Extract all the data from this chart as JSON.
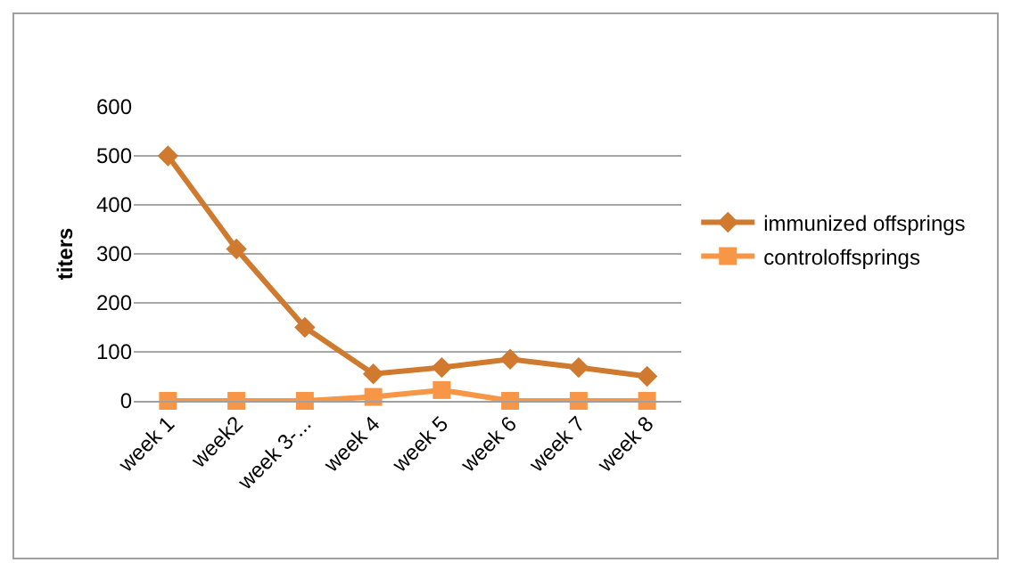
{
  "chart_data": {
    "type": "line",
    "ylabel": "titers",
    "categories": [
      "week 1",
      "week2",
      "week 3-...",
      "week 4",
      "week 5",
      "week 6",
      "week 7",
      "week 8"
    ],
    "series": [
      {
        "name": "immunized offsprings",
        "color": "#d07a30",
        "marker": "diamond",
        "values": [
          500,
          310,
          150,
          55,
          68,
          85,
          68,
          50
        ]
      },
      {
        "name": "controloffsprings",
        "color": "#f79646",
        "marker": "square",
        "values": [
          0,
          0,
          0,
          8,
          22,
          0,
          0,
          0
        ]
      }
    ],
    "ylim": [
      0,
      600
    ],
    "yticks": [
      0,
      100,
      200,
      300,
      400,
      500,
      600
    ],
    "grid": "y",
    "legend": "right",
    "line_style": "solid"
  }
}
